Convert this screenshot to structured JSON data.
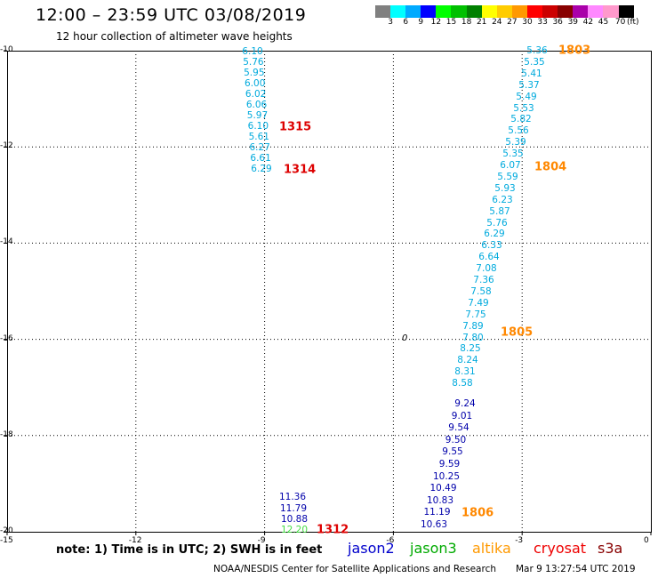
{
  "header": {
    "title": "12:00 – 23:59 UTC 03/08/2019",
    "subtitle": "12 hour collection of altimeter wave heights"
  },
  "legend": {
    "unit": "(ft)",
    "colors": [
      "#808080",
      "#00ffff",
      "#00aaff",
      "#0000ff",
      "#00ff00",
      "#00c000",
      "#008000",
      "#ffff00",
      "#ffcc00",
      "#ff9900",
      "#ff0000",
      "#cc0000",
      "#880000",
      "#aa00aa",
      "#ff88ff",
      "#ff99cc",
      "#000000"
    ],
    "labels": [
      "3",
      "6",
      "9",
      "12",
      "15",
      "18",
      "21",
      "24",
      "27",
      "30",
      "33",
      "36",
      "39",
      "42",
      "45",
      "70"
    ]
  },
  "axes": {
    "x_ticks": [
      "-15",
      "-12",
      "-9",
      "-6",
      "-3",
      "0"
    ],
    "y_ticks": [
      "-10",
      "-12",
      "-14",
      "-16",
      "-18",
      "-20"
    ]
  },
  "contour_label": "0",
  "track_cyan_left": {
    "color": "#00aadd",
    "values": [
      "6.10",
      "5.76",
      "5.95",
      "6.00",
      "6.02",
      "6.06",
      "5.97",
      "6.10",
      "5.61",
      "6.27",
      "6.61",
      "6.29"
    ]
  },
  "track_cyan_right": {
    "color": "#00aadd",
    "values": [
      "5.36",
      "5.35",
      "5.41",
      "5.37",
      "5.49",
      "5.53",
      "5.82",
      "5.56",
      "5.39",
      "5.35",
      "6.07",
      "5.59",
      "5.93",
      "6.23",
      "5.87",
      "5.76",
      "6.29",
      "6.33",
      "6.64",
      "7.08",
      "7.36",
      "7.58",
      "7.49",
      "7.75",
      "7.89",
      "7.80",
      "8.25",
      "8.24",
      "8.31",
      "8.58"
    ]
  },
  "track_blue_right": {
    "color": "#0000aa",
    "values": [
      "9.24",
      "9.01",
      "9.54",
      "9.50",
      "9.55",
      "9.59",
      "10.25",
      "10.49",
      "10.83",
      "11.19",
      "10.63"
    ]
  },
  "track_bottom_left": {
    "blue_color": "#0000aa",
    "green_color": "#44dd44",
    "blue_values": [
      "11.36",
      "11.79",
      "10.88"
    ],
    "green_value": "12.20"
  },
  "times": {
    "red_color": "#dd0000",
    "orange_color": "#ff8800",
    "red": [
      "1315",
      "1314",
      "1312"
    ],
    "orange": [
      "1803",
      "1804",
      "1805",
      "1806"
    ]
  },
  "note": "note:  1) Time is in UTC;  2) SWH is in feet",
  "satellites": [
    {
      "name": "jason2",
      "color": "#0000cc"
    },
    {
      "name": "jason3",
      "color": "#00aa00"
    },
    {
      "name": "altika",
      "color": "#ff9900"
    },
    {
      "name": "cryosat",
      "color": "#ee0000"
    },
    {
      "name": "s3a",
      "color": "#880000"
    }
  ],
  "footer": {
    "credit": "NOAA/NESDIS Center for Satellite Applications and Research",
    "timestamp": "Mar  9 13:27:54 UTC 2019"
  }
}
